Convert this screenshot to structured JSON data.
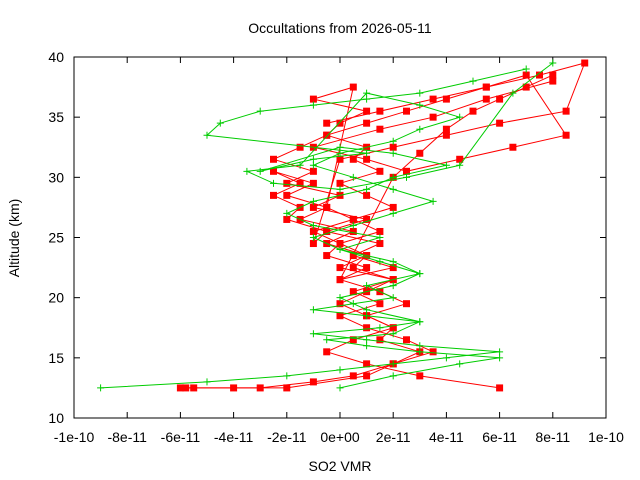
{
  "chart_data": {
    "type": "line",
    "title": "Occultations from 2026-05-11",
    "xlabel": "SO2 VMR",
    "ylabel": "Altitude (km)",
    "xlim": [
      -1e-10,
      1e-10
    ],
    "ylim": [
      10,
      40
    ],
    "x_ticks": [
      -1e-10,
      -8e-11,
      -6e-11,
      -4e-11,
      -2e-11,
      0,
      2e-11,
      4e-11,
      6e-11,
      8e-11,
      1e-10
    ],
    "x_tick_labels": [
      "-1e-10",
      "-8e-11",
      "-6e-11",
      "-4e-11",
      "-2e-11",
      "0e+00",
      "2e-11",
      "4e-11",
      "6e-11",
      "8e-11",
      "1e-10"
    ],
    "y_ticks": [
      10,
      15,
      20,
      25,
      30,
      35,
      40
    ],
    "y_tick_labels": [
      "10",
      "15",
      "20",
      "25",
      "30",
      "35",
      "40"
    ],
    "grid": false,
    "legend": "none",
    "colors": {
      "red": "#ff0000",
      "green": "#00cc00"
    },
    "series": [
      {
        "color": "red",
        "marker": "square",
        "x": [
          -6e-11,
          -5.5e-11,
          -4e-11,
          -2e-11,
          1e-11,
          2e-11,
          3e-11,
          1.5e-11,
          2e-11,
          1e-11,
          0,
          1e-11,
          2e-11,
          5e-12,
          1e-11,
          0,
          1.5e-11,
          5e-12,
          2e-11,
          1e-11,
          0,
          1.5e-11,
          5e-12,
          1e-11,
          -5e-12,
          0,
          1e-11,
          -1e-11,
          5e-12,
          -5e-12,
          5e-12,
          -1e-11,
          0,
          -5e-12,
          1e-11,
          0,
          2e-11,
          3e-11,
          4e-11,
          5e-11,
          6e-11,
          7e-11,
          8e-11
        ],
        "y": [
          12.5,
          12.5,
          12.5,
          12.5,
          13.5,
          14.5,
          15.5,
          16.5,
          17.5,
          18.5,
          19.5,
          20.5,
          21.5,
          22.5,
          23.5,
          24.5,
          25.5,
          26.5,
          27.5,
          28.5,
          29.5,
          30.5,
          31.5,
          32.5,
          33.5,
          34.5,
          35.5,
          36.5,
          37.5,
          27.5,
          26.5,
          25.5,
          24.5,
          23.5,
          22.5,
          21.5,
          30,
          32,
          34,
          35.5,
          36.5,
          37.5,
          38.5
        ]
      },
      {
        "color": "red",
        "marker": "square",
        "x": [
          -5.8e-11,
          -3e-11,
          -1e-11,
          5e-12,
          2e-11,
          3.5e-11,
          2.5e-11,
          1e-11,
          0,
          1.5e-11,
          5e-12,
          2e-11,
          0,
          1e-11,
          -5e-12,
          5e-12,
          -1.5e-11,
          -5e-12,
          -2e-11,
          -1e-11,
          -2.5e-11,
          -1.5e-11,
          -2.5e-11,
          -1.5e-11,
          -2e-11,
          -5e-12,
          -1e-11,
          0,
          2e-11,
          4e-11,
          6e-11,
          8.5e-11,
          9.2e-11,
          7.5e-11,
          5.5e-11,
          3.5e-11,
          1.5e-11,
          -5e-12
        ],
        "y": [
          12.5,
          12.5,
          13,
          13.5,
          14.5,
          15.5,
          16.5,
          17.5,
          18.5,
          19.5,
          20.5,
          21.5,
          22.5,
          23.5,
          24.5,
          25.5,
          26.5,
          27.5,
          28.5,
          29.5,
          30.5,
          29.5,
          28.5,
          27.5,
          26.5,
          25.5,
          24.5,
          31.5,
          32.5,
          33.5,
          34.5,
          35.5,
          39.5,
          38.5,
          37.5,
          36.5,
          35.5,
          34.5
        ]
      },
      {
        "color": "red",
        "marker": "square",
        "x": [
          6e-11,
          3e-11,
          1e-11,
          -5e-12,
          5e-12,
          2e-11,
          1e-11,
          2.5e-11,
          1.5e-11,
          0,
          2e-11,
          5e-12,
          1.5e-11,
          -5e-12,
          1e-11,
          -1e-11,
          0,
          -2e-11,
          -1e-11,
          -2.5e-11,
          -1.5e-11,
          -5e-12,
          1e-11,
          2.5e-11,
          4e-11,
          5.5e-11,
          7e-11,
          8.5e-11,
          6.5e-11,
          4.5e-11,
          2.5e-11,
          1e-11,
          -1e-11,
          1.5e-11,
          3.5e-11,
          5.5e-11,
          8e-11
        ],
        "y": [
          12.5,
          13.5,
          14.5,
          15.5,
          16.5,
          17.5,
          18.5,
          19.5,
          20.5,
          21.5,
          22.5,
          23.5,
          24.5,
          25.5,
          26.5,
          27.5,
          28.5,
          29.5,
          30.5,
          31.5,
          32.5,
          33.5,
          34.5,
          35.5,
          36.5,
          37.5,
          38.5,
          33.5,
          32.5,
          31.5,
          30.5,
          31.5,
          32.5,
          34,
          35,
          36.5,
          38
        ]
      },
      {
        "color": "green",
        "marker": "plus",
        "x": [
          -9e-11,
          -5e-11,
          -2e-11,
          0,
          2e-11,
          4e-11,
          6e-11,
          3e-11,
          1e-11,
          -1e-11,
          1.5e-11,
          3e-11,
          1e-11,
          -1e-11,
          5e-12,
          2e-11,
          1e-11,
          3e-11,
          2e-11,
          0,
          1.5e-11,
          -1e-11,
          -2e-11,
          -1e-11,
          1e-11,
          2e-11,
          4e-11,
          2e-11,
          0,
          -3e-11,
          -1e-11,
          1e-11,
          -5e-11,
          -4.5e-11,
          -3e-11,
          -1e-11,
          1e-11,
          3e-11,
          5e-11,
          7e-11
        ],
        "y": [
          12.5,
          13,
          13.5,
          14,
          14.5,
          15,
          15.5,
          16,
          16.5,
          17,
          17.5,
          18,
          18.5,
          19,
          19.5,
          20,
          21,
          22,
          23,
          24,
          25,
          26,
          27,
          28,
          29,
          30,
          31,
          32,
          32.5,
          30.5,
          31.5,
          32,
          33.5,
          34.5,
          35.5,
          36,
          36.5,
          37,
          38,
          39
        ]
      },
      {
        "color": "green",
        "marker": "plus",
        "x": [
          0,
          2e-11,
          4.5e-11,
          6e-11,
          3e-11,
          1e-11,
          -5e-12,
          2e-11,
          3e-11,
          1e-11,
          0,
          2e-11,
          3e-11,
          1.5e-11,
          0,
          -1e-11,
          5e-12,
          2e-11,
          3.5e-11,
          2e-11,
          5e-12,
          -1e-11,
          0,
          2e-11,
          3e-11,
          4.5e-11,
          3e-11,
          1e-11,
          -1.5e-11,
          -3.5e-11,
          -2.5e-11,
          0,
          2.5e-11,
          4.5e-11,
          6.5e-11,
          8e-11
        ],
        "y": [
          12.5,
          13.5,
          14.5,
          15,
          15.5,
          16,
          16.5,
          17,
          18,
          19,
          20,
          21,
          22,
          23,
          24,
          25,
          26,
          27,
          28,
          29,
          30,
          31,
          32,
          33,
          34,
          35,
          36,
          37,
          31,
          30.5,
          29.5,
          29,
          30,
          31,
          37,
          39.5
        ]
      }
    ]
  }
}
